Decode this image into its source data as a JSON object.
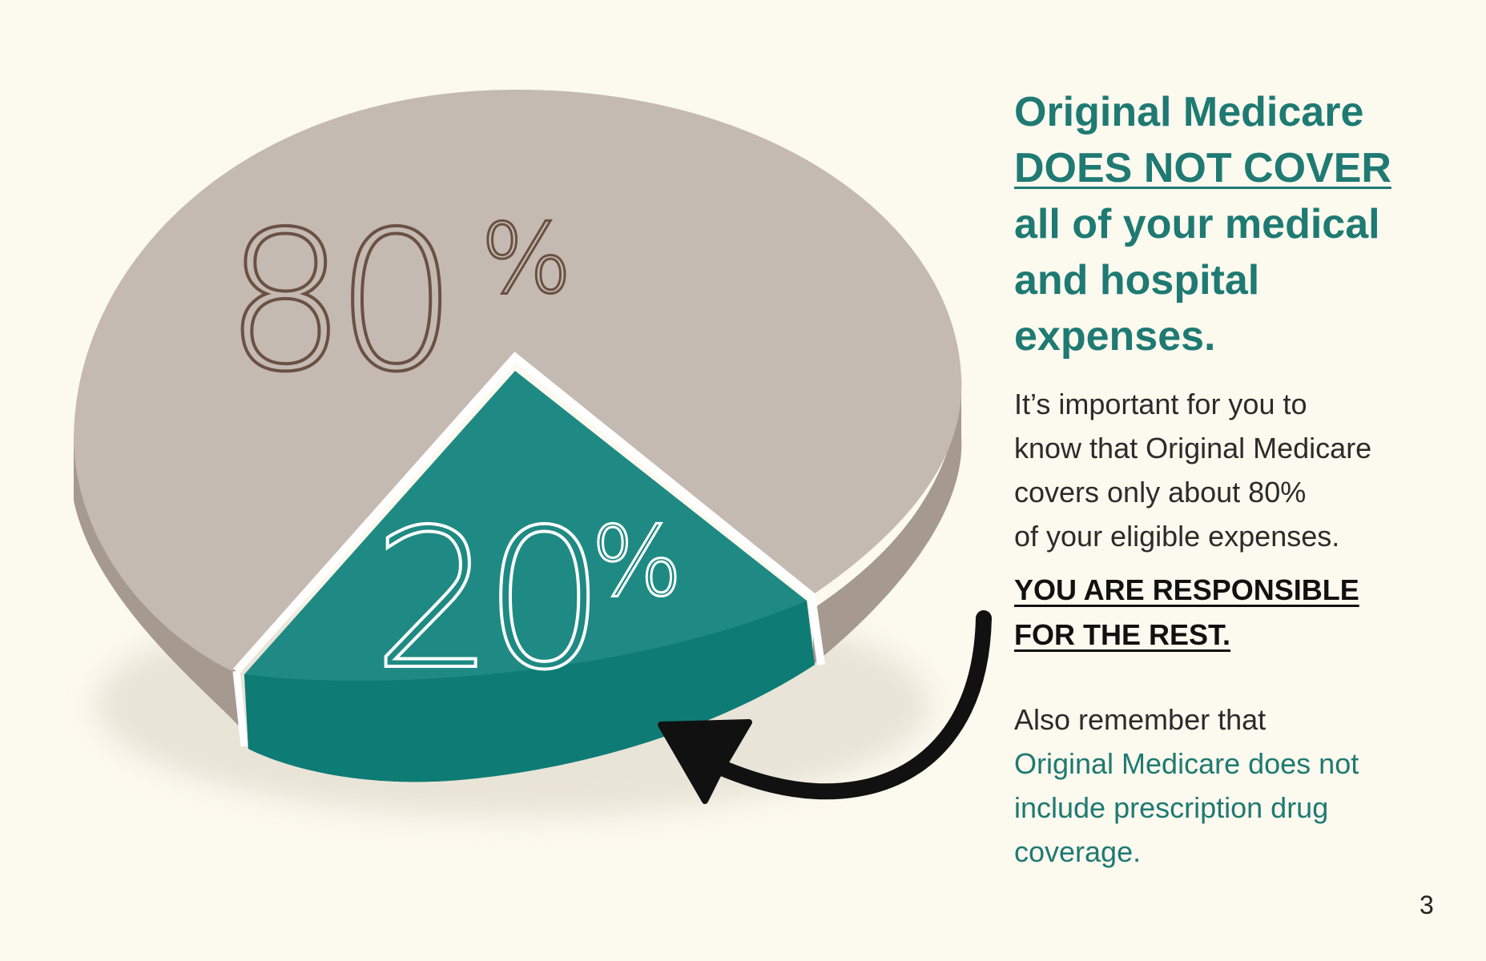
{
  "chart_data": {
    "type": "pie",
    "slices": [
      {
        "label": "80%",
        "value": 80,
        "color": "#c4bab1",
        "side_color": "#a59990"
      },
      {
        "label": "20%",
        "value": 20,
        "color": "#1f8a84",
        "side_color": "#0e7b75"
      }
    ]
  },
  "headline": {
    "line1": "Original Medicare",
    "line2": "DOES NOT COVER",
    "line3": "all of your medical",
    "line4": "and hospital",
    "line5": "expenses."
  },
  "body": {
    "line1": "It’s important for you to",
    "line2": "know that Original Medicare",
    "line3": "covers only about 80%",
    "line4": "of your eligible expenses."
  },
  "responsible": {
    "line1": "YOU ARE RESPONSIBLE",
    "line2": "FOR THE REST."
  },
  "also": {
    "line1": "Also remember that",
    "line2": "Original Medicare does not",
    "line3": "include prescription drug",
    "line4": "coverage."
  },
  "page_number": "3",
  "colors": {
    "background": "#fcf9ee",
    "teal_text": "#1e7a72",
    "label_80": "#6b5143"
  }
}
